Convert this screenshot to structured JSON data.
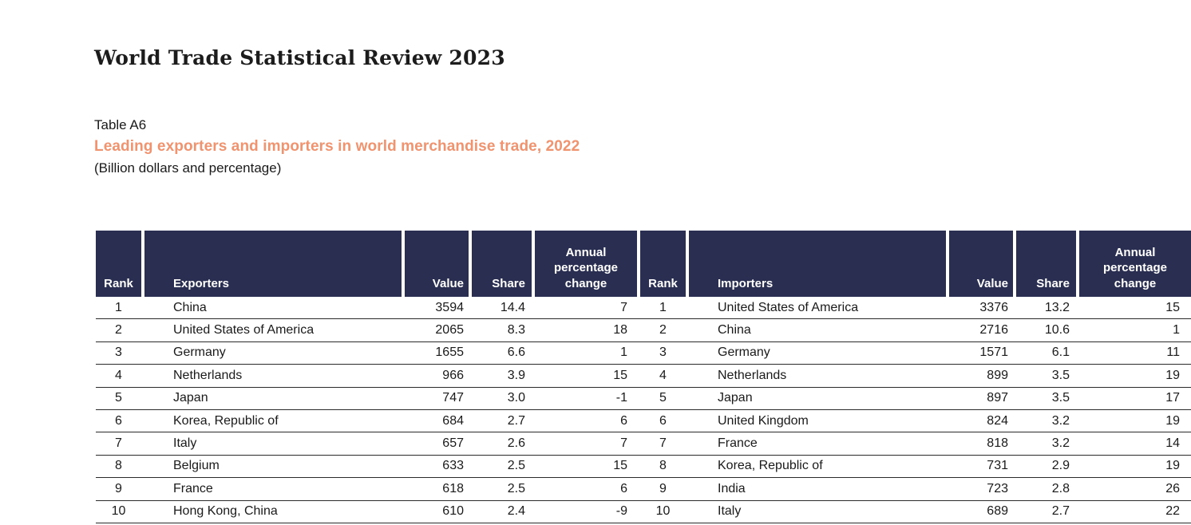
{
  "page": {
    "title": "World Trade Statistical Review 2023",
    "table_label": "Table A6",
    "table_title": "Leading exporters and importers in world merchandise trade, 2022",
    "table_unit_note": "(Billion dollars and percentage)"
  },
  "colors": {
    "header_bg": "#2a2f51",
    "header_text": "#ffffff",
    "accent_orange": "#f0936f",
    "row_line": "#2a2a2a"
  },
  "table": {
    "headers": {
      "rank": "Rank",
      "exporters": "Exporters",
      "importers": "Importers",
      "value": "Value",
      "share": "Share",
      "annual_pct_change": "Annual percentage change"
    },
    "rows": [
      {
        "exp_rank": "1",
        "exporter": "China",
        "exp_value": "3594",
        "exp_share": "14.4",
        "exp_change": "7",
        "imp_rank": "1",
        "importer": "United States of America",
        "imp_value": "3376",
        "imp_share": "13.2",
        "imp_change": "15"
      },
      {
        "exp_rank": "2",
        "exporter": "United States of America",
        "exp_value": "2065",
        "exp_share": "8.3",
        "exp_change": "18",
        "imp_rank": "2",
        "importer": "China",
        "imp_value": "2716",
        "imp_share": "10.6",
        "imp_change": "1"
      },
      {
        "exp_rank": "3",
        "exporter": "Germany",
        "exp_value": "1655",
        "exp_share": "6.6",
        "exp_change": "1",
        "imp_rank": "3",
        "importer": "Germany",
        "imp_value": "1571",
        "imp_share": "6.1",
        "imp_change": "11"
      },
      {
        "exp_rank": "4",
        "exporter": "Netherlands",
        "exp_value": "966",
        "exp_share": "3.9",
        "exp_change": "15",
        "imp_rank": "4",
        "importer": "Netherlands",
        "imp_value": "899",
        "imp_share": "3.5",
        "imp_change": "19"
      },
      {
        "exp_rank": "5",
        "exporter": "Japan",
        "exp_value": "747",
        "exp_share": "3.0",
        "exp_change": "-1",
        "imp_rank": "5",
        "importer": "Japan",
        "imp_value": "897",
        "imp_share": "3.5",
        "imp_change": "17"
      },
      {
        "exp_rank": "6",
        "exporter": "Korea, Republic of",
        "exp_value": "684",
        "exp_share": "2.7",
        "exp_change": "6",
        "imp_rank": "6",
        "importer": "United Kingdom",
        "imp_value": "824",
        "imp_share": "3.2",
        "imp_change": "19"
      },
      {
        "exp_rank": "7",
        "exporter": "Italy",
        "exp_value": "657",
        "exp_share": "2.6",
        "exp_change": "7",
        "imp_rank": "7",
        "importer": "France",
        "imp_value": "818",
        "imp_share": "3.2",
        "imp_change": "14"
      },
      {
        "exp_rank": "8",
        "exporter": "Belgium",
        "exp_value": "633",
        "exp_share": "2.5",
        "exp_change": "15",
        "imp_rank": "8",
        "importer": "Korea, Republic of",
        "imp_value": "731",
        "imp_share": "2.9",
        "imp_change": "19"
      },
      {
        "exp_rank": "9",
        "exporter": "France",
        "exp_value": "618",
        "exp_share": "2.5",
        "exp_change": "6",
        "imp_rank": "9",
        "importer": "India",
        "imp_value": "723",
        "imp_share": "2.8",
        "imp_change": "26"
      },
      {
        "exp_rank": "10",
        "exporter": "Hong Kong, China",
        "exp_value": "610",
        "exp_share": "2.4",
        "exp_change": "-9",
        "imp_rank": "10",
        "importer": "Italy",
        "imp_value": "689",
        "imp_share": "2.7",
        "imp_change": "22"
      }
    ]
  }
}
